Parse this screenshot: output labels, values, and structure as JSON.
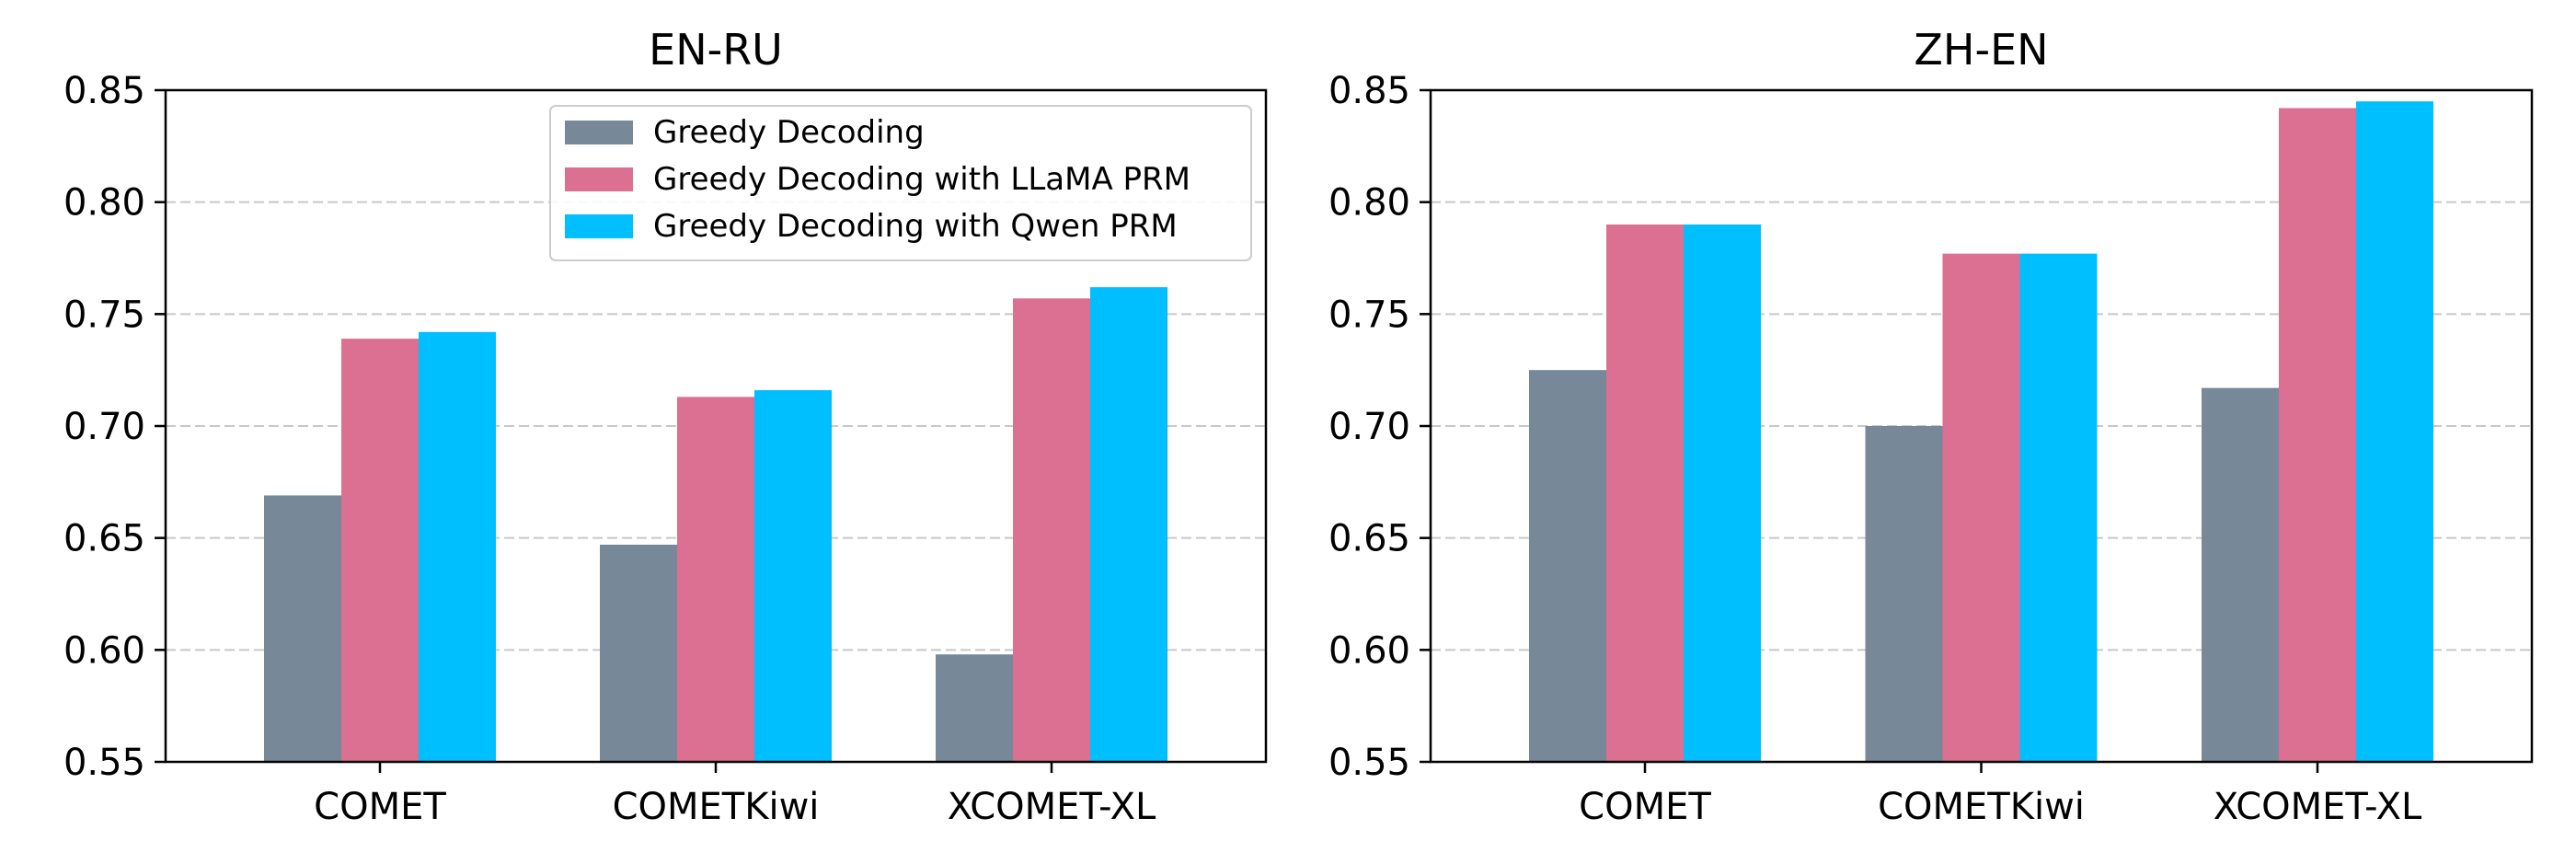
{
  "chart_data": [
    {
      "type": "bar",
      "title": "EN-RU",
      "categories": [
        "COMET",
        "COMETKiwi",
        "XCOMET-XL"
      ],
      "ylim": [
        0.55,
        0.85
      ],
      "yticks": [
        "0.55",
        "0.60",
        "0.65",
        "0.70",
        "0.75",
        "0.80",
        "0.85"
      ],
      "grid": "horizontal dashed",
      "legend_position": "top-right",
      "series": [
        {
          "name": "Greedy Decoding",
          "color": "#778899",
          "values": [
            0.669,
            0.647,
            0.598
          ]
        },
        {
          "name": "Greedy Decoding with LLaMA PRM",
          "color": "#DB7093",
          "values": [
            0.739,
            0.713,
            0.757
          ]
        },
        {
          "name": "Greedy Decoding with Qwen PRM",
          "color": "#00BFFF",
          "values": [
            0.742,
            0.716,
            0.762
          ]
        }
      ]
    },
    {
      "type": "bar",
      "title": "ZH-EN",
      "categories": [
        "COMET",
        "COMETKiwi",
        "XCOMET-XL"
      ],
      "ylim": [
        0.55,
        0.85
      ],
      "yticks": [
        "0.55",
        "0.60",
        "0.65",
        "0.70",
        "0.75",
        "0.80",
        "0.85"
      ],
      "grid": "horizontal dashed",
      "series": [
        {
          "color": "#778899",
          "values": [
            0.725,
            0.7,
            0.717
          ]
        },
        {
          "color": "#DB7093",
          "values": [
            0.79,
            0.777,
            0.842
          ]
        },
        {
          "color": "#00BFFF",
          "values": [
            0.79,
            0.777,
            0.845
          ]
        }
      ]
    }
  ]
}
